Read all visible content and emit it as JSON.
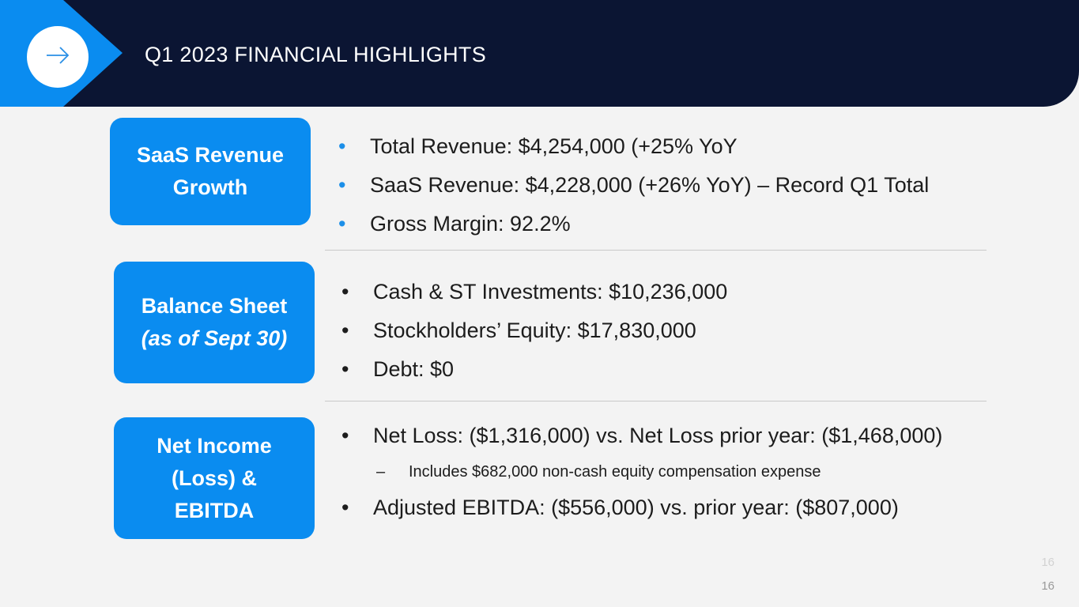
{
  "header": {
    "title": "Q1 2023 FINANCIAL HIGHLIGHTS",
    "icon": "arrow-right-icon",
    "colors": {
      "header_bg": "#0b1533",
      "accent": "#0a8cf0"
    }
  },
  "sections": [
    {
      "badge_lines": [
        "SaaS Revenue",
        "Growth"
      ],
      "bullets": [
        "Total Revenue: $4,254,000  (+25% YoY",
        "SaaS Revenue: $4,228,000  (+26% YoY) – Record Q1 Total",
        "Gross Margin: 92.2%"
      ]
    },
    {
      "badge_lines": [
        "Balance Sheet",
        "(as of Sept 30)"
      ],
      "bullets": [
        "Cash & ST Investments: $10,236,000",
        "Stockholders’ Equity: $17,830,000",
        "Debt: $0"
      ]
    },
    {
      "badge_lines": [
        "Net Income",
        "(Loss) &",
        "EBITDA"
      ],
      "bullets": [
        "Net Loss: ($1,316,000) vs. Net Loss prior year: ($1,468,000)",
        "Includes $682,000 non-cash equity compensation expense",
        "Adjusted EBITDA: ($556,000) vs. prior year: ($807,000)"
      ]
    }
  ],
  "bullet_glyph": "•",
  "sub_bullet_glyph": "–",
  "page_numbers": [
    "16",
    "16"
  ]
}
